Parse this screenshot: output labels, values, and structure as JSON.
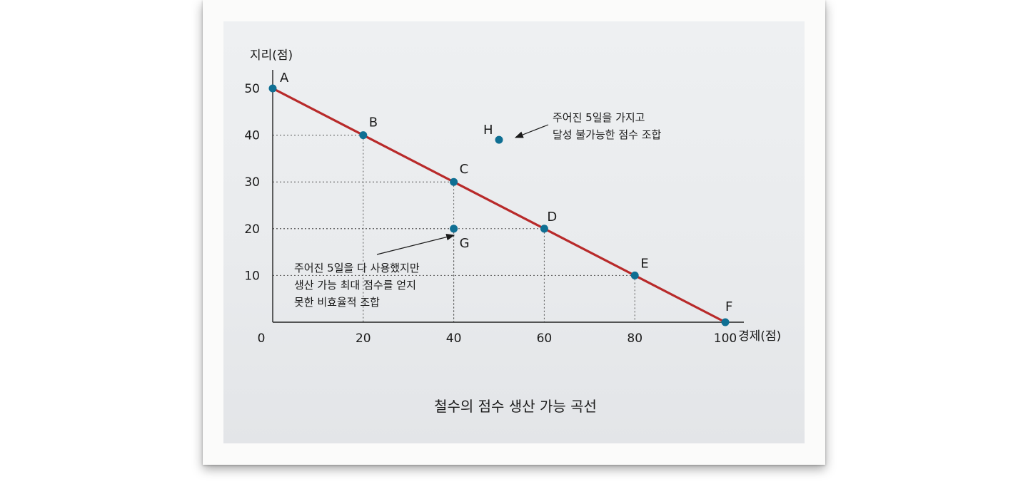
{
  "chart_data": {
    "type": "line",
    "title": "철수의 점수 생산 가능 곡선",
    "xlabel": "경제(점)",
    "ylabel": "지리(점)",
    "x_ticks": [
      "0",
      "20",
      "40",
      "60",
      "80",
      "100"
    ],
    "y_ticks": [
      "10",
      "20",
      "30",
      "40",
      "50"
    ],
    "xlim": [
      0,
      100
    ],
    "ylim": [
      0,
      50
    ],
    "curve": [
      [
        0,
        50
      ],
      [
        100,
        0
      ]
    ],
    "points": [
      {
        "label": "A",
        "x": 0,
        "y": 50
      },
      {
        "label": "B",
        "x": 20,
        "y": 40
      },
      {
        "label": "C",
        "x": 40,
        "y": 30
      },
      {
        "label": "D",
        "x": 60,
        "y": 20
      },
      {
        "label": "E",
        "x": 80,
        "y": 10
      },
      {
        "label": "F",
        "x": 100,
        "y": 0
      },
      {
        "label": "G",
        "x": 40,
        "y": 20
      },
      {
        "label": "H",
        "x": 50,
        "y": 39
      }
    ],
    "annotations": [
      {
        "target": "H",
        "lines": [
          "주어진 5일을 가지고",
          "달성 불가능한 점수 조합"
        ]
      },
      {
        "target": "G",
        "lines": [
          "주어진 5일을 다 사용했지만",
          "생산 가능 최대 점수를 얻지",
          "못한 비효율적 조합"
        ]
      }
    ],
    "colors": {
      "curve": "#b82a2a",
      "point": "#0f6f93",
      "guide": "#555555"
    }
  }
}
